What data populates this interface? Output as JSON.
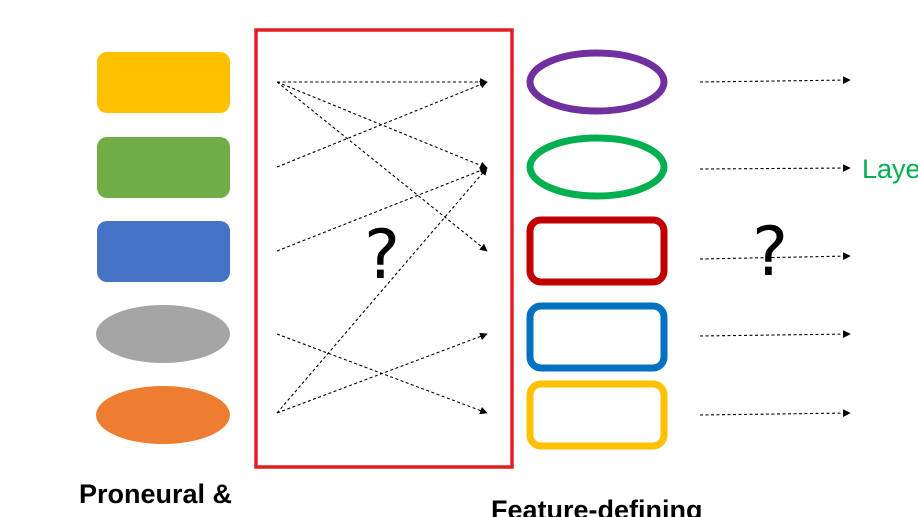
{
  "question_marks": [
    "?",
    "?"
  ],
  "labels": {
    "left": "Proneural &",
    "middle": "Feature-defining",
    "right_partial": "Laye"
  },
  "left_shapes": [
    {
      "name": "yellow-rounded-rect",
      "color": "#FFC000"
    },
    {
      "name": "green-rounded-rect",
      "color": "#70AD47"
    },
    {
      "name": "blue-rounded-rect",
      "color": "#4472C4"
    },
    {
      "name": "gray-ellipse",
      "color": "#A5A5A5"
    },
    {
      "name": "orange-ellipse",
      "color": "#ED7D31"
    }
  ],
  "right_shapes": [
    {
      "name": "purple-ellipse-outline",
      "color": "#7030A0"
    },
    {
      "name": "green-ellipse-outline",
      "color": "#00B050"
    },
    {
      "name": "red-rounded-rect-outline",
      "color": "#C00000"
    },
    {
      "name": "blue-rounded-rect-outline",
      "color": "#0070C0"
    },
    {
      "name": "yellow-rounded-rect-outline",
      "color": "#FFC000"
    }
  ],
  "colors": {
    "box_border": "#E02020",
    "arrow": "#000000",
    "layer_label": "#00B050"
  }
}
